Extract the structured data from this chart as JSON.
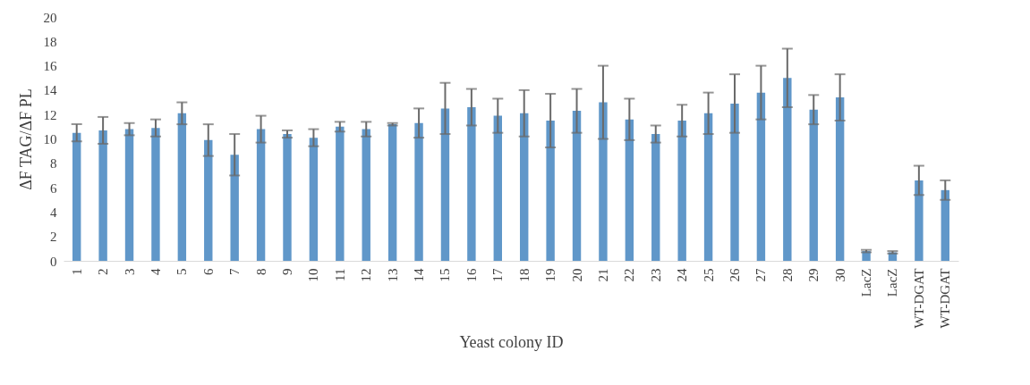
{
  "chart_data": {
    "type": "bar",
    "xlabel": "Yeast colony ID",
    "ylabel": "ΔF TAG/ΔF PL",
    "categories": [
      "1",
      "2",
      "3",
      "4",
      "5",
      "6",
      "7",
      "8",
      "9",
      "10",
      "11",
      "12",
      "13",
      "14",
      "15",
      "16",
      "17",
      "18",
      "19",
      "20",
      "21",
      "22",
      "23",
      "24",
      "25",
      "26",
      "27",
      "28",
      "29",
      "30",
      "LacZ",
      "LacZ",
      "WT-DGAT",
      "WT-DGAT"
    ],
    "values": [
      10.5,
      10.7,
      10.8,
      10.9,
      12.1,
      9.9,
      8.7,
      10.8,
      10.4,
      10.1,
      11.0,
      10.8,
      11.2,
      11.3,
      12.5,
      12.6,
      11.9,
      12.1,
      11.5,
      12.3,
      13.0,
      11.6,
      10.4,
      11.5,
      12.1,
      12.9,
      13.8,
      15.0,
      12.4,
      13.4,
      0.8,
      0.7,
      6.6,
      5.8
    ],
    "errors": [
      0.7,
      1.1,
      0.5,
      0.7,
      0.9,
      1.3,
      1.7,
      1.1,
      0.3,
      0.7,
      0.4,
      0.6,
      0.1,
      1.2,
      2.1,
      1.5,
      1.4,
      1.9,
      2.2,
      1.8,
      3.0,
      1.7,
      0.7,
      1.3,
      1.7,
      2.4,
      2.2,
      2.4,
      1.2,
      1.9,
      0.1,
      0.1,
      1.2,
      0.8
    ],
    "color": "#6097c9",
    "ylim": [
      0,
      20
    ],
    "yticks": [
      0,
      2,
      4,
      6,
      8,
      10,
      12,
      14,
      16,
      18,
      20
    ],
    "grid": false
  }
}
